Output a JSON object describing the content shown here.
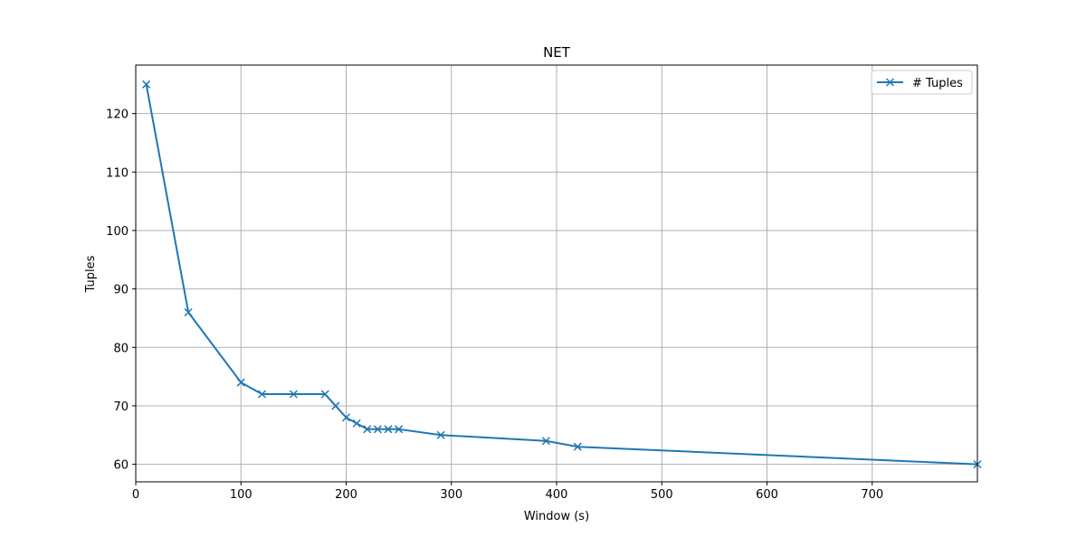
{
  "chart_data": {
    "type": "line",
    "title": "NET",
    "xlabel": "Window (s)",
    "ylabel": "Tuples",
    "xlim": [
      0,
      800
    ],
    "ylim": [
      57,
      128.3
    ],
    "x_ticks": [
      0,
      100,
      200,
      300,
      400,
      500,
      600,
      700
    ],
    "y_ticks": [
      60,
      70,
      80,
      90,
      100,
      110,
      120
    ],
    "grid": true,
    "legend_position": "top-right",
    "series": [
      {
        "name": "# Tuples",
        "color": "#1f77b4",
        "marker": "x",
        "points": [
          [
            10,
            125
          ],
          [
            50,
            86
          ],
          [
            100,
            74
          ],
          [
            120,
            72
          ],
          [
            150,
            72
          ],
          [
            180,
            72
          ],
          [
            190,
            70
          ],
          [
            200,
            68
          ],
          [
            210,
            67
          ],
          [
            220,
            66
          ],
          [
            230,
            66
          ],
          [
            240,
            66
          ],
          [
            250,
            66
          ],
          [
            290,
            65
          ],
          [
            390,
            64
          ],
          [
            420,
            63
          ],
          [
            800,
            60
          ]
        ]
      }
    ]
  }
}
